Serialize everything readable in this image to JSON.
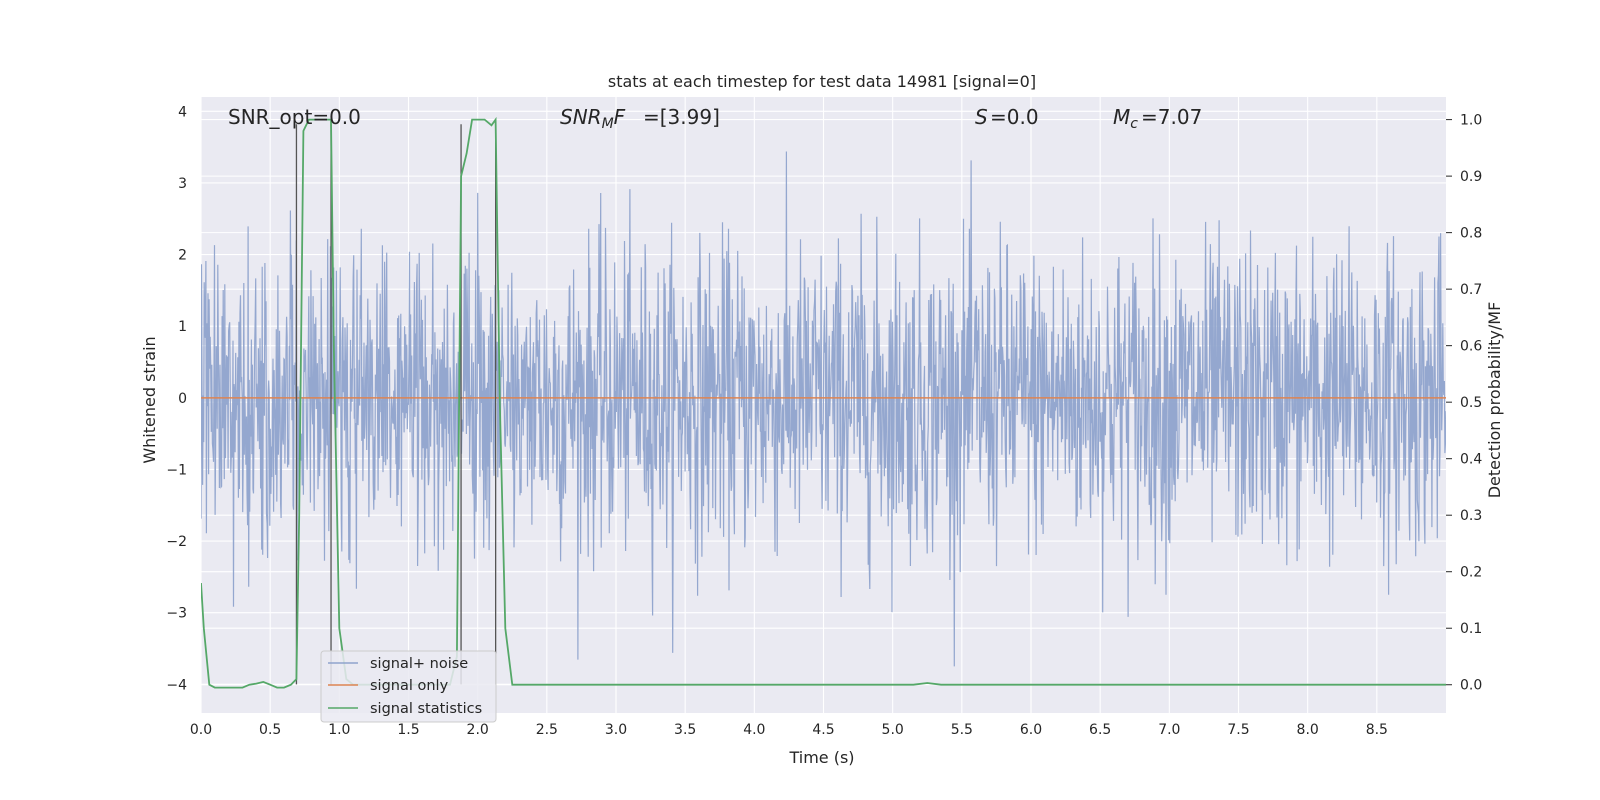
{
  "chart_data": {
    "type": "line",
    "title": "stats at each timestep for test data 14981 [signal=0]",
    "xlabel": "Time (s)",
    "ylabel_left": "Whitened strain",
    "ylabel_right": "Detection probability/MF",
    "xlim": [
      0.0,
      9.0
    ],
    "ylim_left": [
      -4.4,
      4.2
    ],
    "ylim_right": [
      -0.05,
      1.04
    ],
    "x_ticks": [
      "0.0",
      "0.5",
      "1.0",
      "1.5",
      "2.0",
      "2.5",
      "3.0",
      "3.5",
      "4.0",
      "4.5",
      "5.0",
      "5.5",
      "6.0",
      "6.5",
      "7.0",
      "7.5",
      "8.0",
      "8.5"
    ],
    "y_ticks_left": [
      "4",
      "3",
      "2",
      "1",
      "0",
      "−1",
      "−2",
      "−3",
      "−4"
    ],
    "y_ticks_right": [
      "1.0",
      "0.9",
      "0.8",
      "0.7",
      "0.6",
      "0.5",
      "0.4",
      "0.3",
      "0.2",
      "0.1",
      "0.0"
    ],
    "grid": true,
    "legend_position": "lower-left",
    "annotations": {
      "snr_opt": "SNR_opt=0.0",
      "snr_mf": "=[3.99]",
      "s_val": "=0.0",
      "mc_val": "=7.07"
    },
    "series": [
      {
        "name": "signal+ noise",
        "axis": "left",
        "color": "#8fa3cc",
        "description_range": [
          -3.75,
          3.85
        ],
        "noise_std": 1.0
      },
      {
        "name": "signal only",
        "axis": "left",
        "color": "#dd8452",
        "x": [
          0.0,
          9.0
        ],
        "y": [
          0.0,
          0.0
        ]
      },
      {
        "name": "signal statistics",
        "axis": "right",
        "color": "#55a868",
        "x": [
          0.0,
          0.02,
          0.06,
          0.1,
          0.2,
          0.3,
          0.35,
          0.4,
          0.45,
          0.5,
          0.55,
          0.6,
          0.65,
          0.69,
          0.71,
          0.74,
          0.78,
          0.85,
          0.9,
          0.94,
          0.96,
          1.0,
          1.05,
          1.1,
          1.2,
          1.3,
          1.5,
          1.7,
          1.8,
          1.85,
          1.88,
          1.92,
          1.96,
          2.0,
          2.05,
          2.1,
          2.13,
          2.16,
          2.2,
          2.25,
          2.3,
          3.0,
          4.0,
          5.0,
          5.15,
          5.25,
          5.35,
          5.5,
          6.0,
          7.0,
          8.0,
          9.0
        ],
        "y": [
          0.18,
          0.1,
          0.0,
          -0.005,
          -0.005,
          -0.005,
          0.0,
          0.002,
          0.005,
          0.0,
          -0.005,
          -0.005,
          0.0,
          0.01,
          0.3,
          0.98,
          1.0,
          1.0,
          1.0,
          1.0,
          0.6,
          0.1,
          0.01,
          0.0,
          0.0,
          0.0,
          0.0,
          0.0,
          0.0,
          0.05,
          0.9,
          0.94,
          1.0,
          1.0,
          1.0,
          0.99,
          1.0,
          0.5,
          0.1,
          0.0,
          0.0,
          0.0,
          0.0,
          0.0,
          0.0,
          0.003,
          0.0,
          0.0,
          0.0,
          0.0,
          0.0,
          0.0
        ]
      }
    ],
    "vertical_markers": [
      {
        "x": 0.69,
        "y_from": -4.0,
        "y_to": 3.82
      },
      {
        "x": 0.94,
        "y_from": -4.0,
        "y_to": 3.82
      },
      {
        "x": 1.88,
        "y_from": -4.0,
        "y_to": 3.82
      },
      {
        "x": 2.13,
        "y_from": -4.0,
        "y_to": 3.82
      }
    ],
    "style": {
      "background": "#eaeaf2",
      "grid_color": "#ffffff",
      "text_color": "#262626",
      "marker_color": "#555555",
      "legend_bg": "#eaeaf2",
      "legend_border": "#cccccc"
    }
  }
}
